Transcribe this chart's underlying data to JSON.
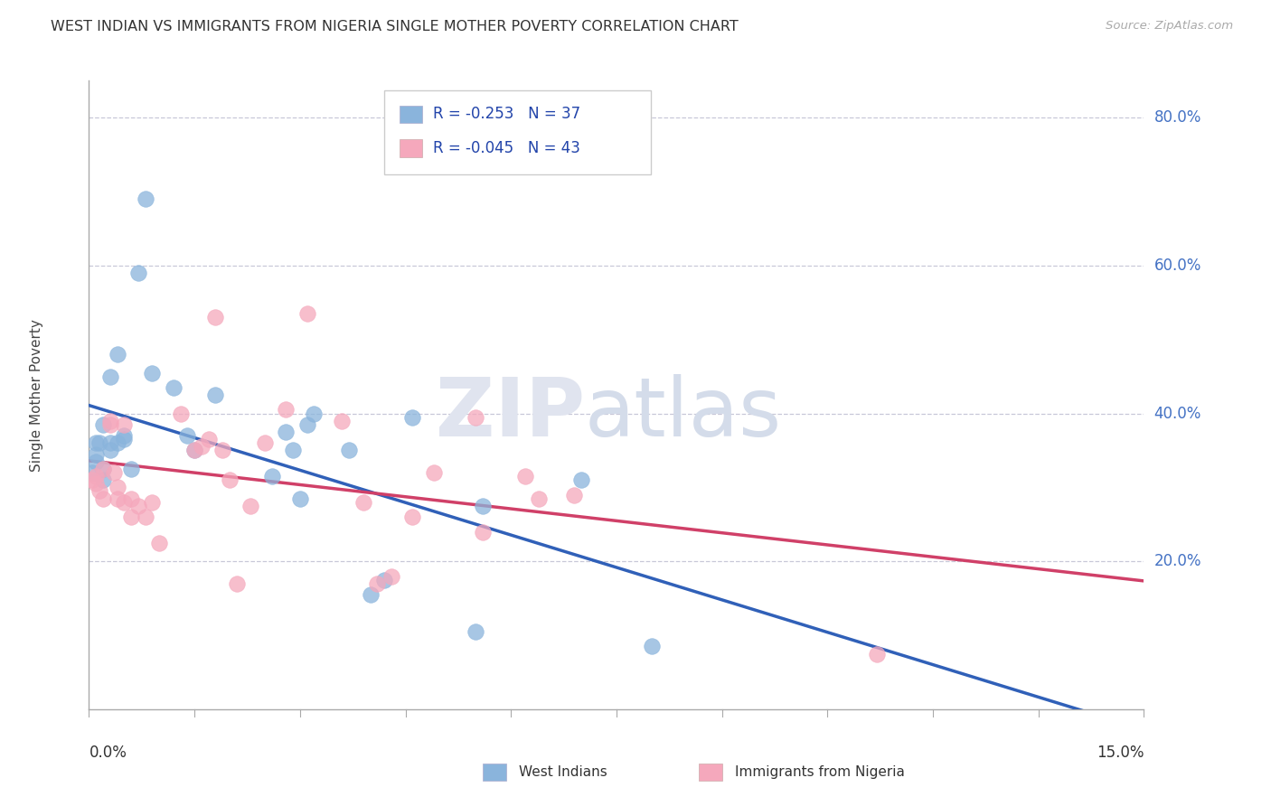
{
  "title": "WEST INDIAN VS IMMIGRANTS FROM NIGERIA SINGLE MOTHER POVERTY CORRELATION CHART",
  "source": "Source: ZipAtlas.com",
  "ylabel": "Single Mother Poverty",
  "xmin": 0.0,
  "xmax": 0.15,
  "ymin": 0.0,
  "ymax": 0.85,
  "yticks": [
    0.2,
    0.4,
    0.6,
    0.8
  ],
  "ytick_labels": [
    "20.0%",
    "40.0%",
    "60.0%",
    "80.0%"
  ],
  "grid_color": "#c8c8d8",
  "background_color": "#ffffff",
  "west_indian_color": "#8ab4dc",
  "nigeria_color": "#f5a8bc",
  "west_indian_line_color": "#3060b8",
  "nigeria_line_color": "#d04068",
  "west_indian_x": [
    0.0005,
    0.001,
    0.001,
    0.001,
    0.0015,
    0.002,
    0.002,
    0.002,
    0.003,
    0.003,
    0.003,
    0.004,
    0.004,
    0.005,
    0.005,
    0.006,
    0.007,
    0.008,
    0.009,
    0.012,
    0.014,
    0.015,
    0.018,
    0.026,
    0.028,
    0.029,
    0.03,
    0.031,
    0.032,
    0.037,
    0.04,
    0.042,
    0.046,
    0.055,
    0.056,
    0.07,
    0.08
  ],
  "west_indian_y": [
    0.32,
    0.335,
    0.345,
    0.36,
    0.36,
    0.31,
    0.325,
    0.385,
    0.36,
    0.35,
    0.45,
    0.48,
    0.36,
    0.365,
    0.37,
    0.325,
    0.59,
    0.69,
    0.455,
    0.435,
    0.37,
    0.35,
    0.425,
    0.315,
    0.375,
    0.35,
    0.285,
    0.385,
    0.4,
    0.35,
    0.155,
    0.175,
    0.395,
    0.105,
    0.275,
    0.31,
    0.085
  ],
  "nigeria_x": [
    0.0005,
    0.001,
    0.001,
    0.0015,
    0.002,
    0.002,
    0.003,
    0.003,
    0.0035,
    0.004,
    0.004,
    0.005,
    0.005,
    0.006,
    0.006,
    0.007,
    0.008,
    0.009,
    0.01,
    0.013,
    0.015,
    0.016,
    0.017,
    0.018,
    0.019,
    0.02,
    0.021,
    0.023,
    0.025,
    0.028,
    0.031,
    0.036,
    0.039,
    0.041,
    0.043,
    0.046,
    0.049,
    0.055,
    0.056,
    0.062,
    0.064,
    0.069,
    0.112
  ],
  "nigeria_y": [
    0.31,
    0.305,
    0.315,
    0.295,
    0.325,
    0.285,
    0.385,
    0.39,
    0.32,
    0.3,
    0.285,
    0.385,
    0.28,
    0.285,
    0.26,
    0.275,
    0.26,
    0.28,
    0.225,
    0.4,
    0.35,
    0.355,
    0.365,
    0.53,
    0.35,
    0.31,
    0.17,
    0.275,
    0.36,
    0.405,
    0.535,
    0.39,
    0.28,
    0.17,
    0.18,
    0.26,
    0.32,
    0.395,
    0.24,
    0.315,
    0.285,
    0.29,
    0.075
  ]
}
